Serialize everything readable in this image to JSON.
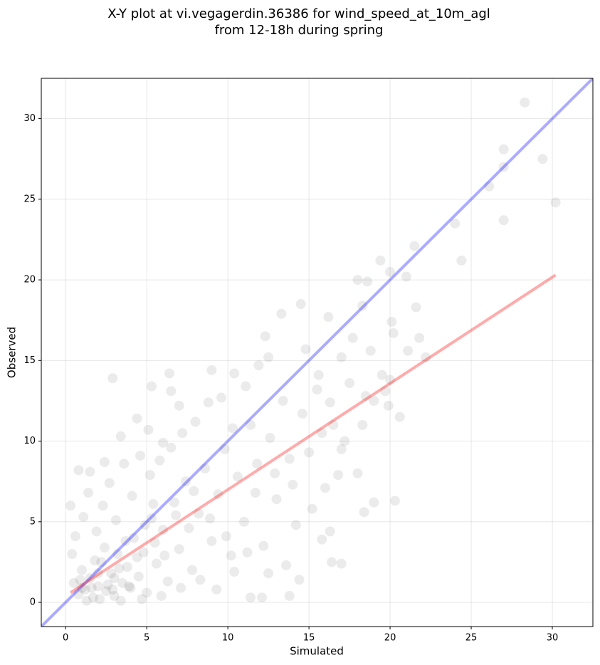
{
  "chart_data": {
    "type": "scatter",
    "title": [
      "X-Y plot at vi.vegagerdin.36386 for wind_speed_at_10m_agl",
      "from 12-18h during spring"
    ],
    "xlabel": "Simulated",
    "ylabel": "Observed",
    "xlim": [
      -1.5,
      32.5
    ],
    "ylim": [
      -1.5,
      32.5
    ],
    "xticks": [
      0,
      5,
      10,
      15,
      20,
      25,
      30
    ],
    "yticks": [
      0,
      5,
      10,
      15,
      20,
      25,
      30
    ],
    "grid": true,
    "series": [
      {
        "color": "#000000",
        "opacity": 0.08,
        "x": [
          28.3,
          27,
          27,
          29.4,
          30.2,
          27,
          24,
          26.1,
          24.4,
          21.5,
          21,
          19.4,
          20,
          20.1,
          20.2,
          21.1,
          21.8,
          22.2,
          21.6,
          20.6,
          20.3,
          19,
          18.4,
          18.3,
          17,
          16.4,
          16.3,
          15.8,
          13.8,
          12.1,
          11.4,
          2.9,
          14.5,
          13.3,
          16.2,
          18,
          18.3,
          18.6,
          17.7,
          19.7,
          19.9,
          18.8,
          17,
          15.6,
          14.8,
          12.3,
          12.5,
          11.9,
          11.1,
          10.4,
          9,
          6.4,
          5.3,
          4.4,
          6.5,
          7,
          0.3,
          0.8,
          1.5,
          2.4,
          3.4,
          5.1,
          6,
          0.5,
          0.8,
          1,
          1.2,
          1.5,
          1.7,
          2,
          2.2,
          2.5,
          2.8,
          3,
          3.2,
          3.5,
          3.8,
          4,
          4.2,
          4.5,
          4.8,
          5,
          5.3,
          5.6,
          6,
          6.3,
          6.7,
          7,
          7.4,
          7.8,
          8.2,
          8.6,
          9,
          9.4,
          9.8,
          10.2,
          10.6,
          11,
          11.4,
          11.8,
          12.2,
          12.6,
          13,
          13.4,
          13.8,
          14.2,
          14.6,
          15,
          15.5,
          16,
          16.5,
          17,
          17.5,
          18,
          0.4,
          0.6,
          1.1,
          1.4,
          1.9,
          2.3,
          2.7,
          3.1,
          3.6,
          4.1,
          4.6,
          5.2,
          5.8,
          6.5,
          7.2,
          8,
          8.8,
          9.6,
          10.3,
          1.3,
          2.1,
          3.4,
          4.7,
          5.9,
          7.1,
          8.3,
          9.3,
          10.4,
          11.2,
          12.5,
          13.6,
          14.4,
          15.2,
          16.8,
          3,
          2,
          1.6,
          2.6,
          3.3,
          3.9,
          0.9,
          1.8,
          2.4,
          4.4,
          5.5,
          6.1,
          7.6,
          8.9,
          9.9,
          1,
          2.9,
          3.7,
          4.9,
          6.8,
          5.4,
          7.9,
          11.7,
          12.9,
          14,
          15.8,
          16.3,
          17.2,
          18.5,
          19.5,
          20,
          19
        ],
        "y": [
          31,
          28.1,
          27,
          27.5,
          24.8,
          23.7,
          23.5,
          25.8,
          21.2,
          22.1,
          20.2,
          21.2,
          20.5,
          17.4,
          16.7,
          15.6,
          16.4,
          15.2,
          18.3,
          11.5,
          6.3,
          6.2,
          5.6,
          11,
          2.4,
          2.5,
          4.4,
          3.9,
          0.4,
          0.3,
          0.3,
          13.9,
          18.5,
          17.9,
          17.7,
          20,
          18.4,
          19.9,
          16.4,
          13.1,
          12.2,
          15.6,
          15.2,
          14.1,
          15.7,
          16.5,
          15.2,
          14.7,
          13.4,
          14.2,
          14.4,
          14.2,
          13.4,
          11.4,
          13.1,
          12.2,
          6,
          8.2,
          8.1,
          8.7,
          10.3,
          10.7,
          9.9,
          1.2,
          0.5,
          2,
          0.8,
          1.5,
          0.3,
          1,
          2.5,
          0.7,
          1.8,
          0.4,
          3,
          1.2,
          2.2,
          0.9,
          4,
          1.6,
          3.1,
          0.6,
          5.2,
          2.4,
          4.5,
          1.3,
          6.2,
          3.3,
          7.5,
          2,
          5.5,
          8.3,
          3.8,
          6.7,
          9.5,
          2.9,
          7.8,
          5,
          11,
          8.6,
          3.5,
          10.2,
          6.4,
          12.5,
          8.9,
          4.8,
          11.7,
          9.3,
          13.2,
          7.1,
          11,
          9.5,
          13.6,
          8,
          3,
          4.1,
          5.3,
          6.8,
          4.4,
          6,
          7.4,
          5.1,
          8.6,
          6.6,
          9.1,
          7.9,
          8.8,
          9.6,
          10.5,
          11.2,
          12.4,
          12.7,
          10.8,
          0.1,
          0.2,
          0.1,
          0.2,
          0.4,
          0.9,
          1.4,
          0.8,
          1.9,
          3.1,
          1.8,
          2.3,
          1.4,
          5.8,
          7.9,
          1.5,
          1.8,
          0.9,
          1.1,
          2.1,
          1,
          1.4,
          2.6,
          3.4,
          2.8,
          3.7,
          2.9,
          4.6,
          5.2,
          4.1,
          0.9,
          0.8,
          3.8,
          4.8,
          5.4,
          6.1,
          6.9,
          6.8,
          8,
          7.3,
          10.5,
          12.4,
          10,
          12.8,
          14.1,
          13.8,
          12.5
        ]
      }
    ],
    "lines": [
      {
        "color": "#0000ff",
        "opacity": 0.33,
        "x": [
          -1.5,
          32.5
        ],
        "y": [
          -1.5,
          32.5
        ]
      },
      {
        "color": "#ff0000",
        "opacity": 0.33,
        "x": [
          0.3,
          30.2
        ],
        "y": [
          0.6,
          20.3
        ]
      }
    ]
  }
}
